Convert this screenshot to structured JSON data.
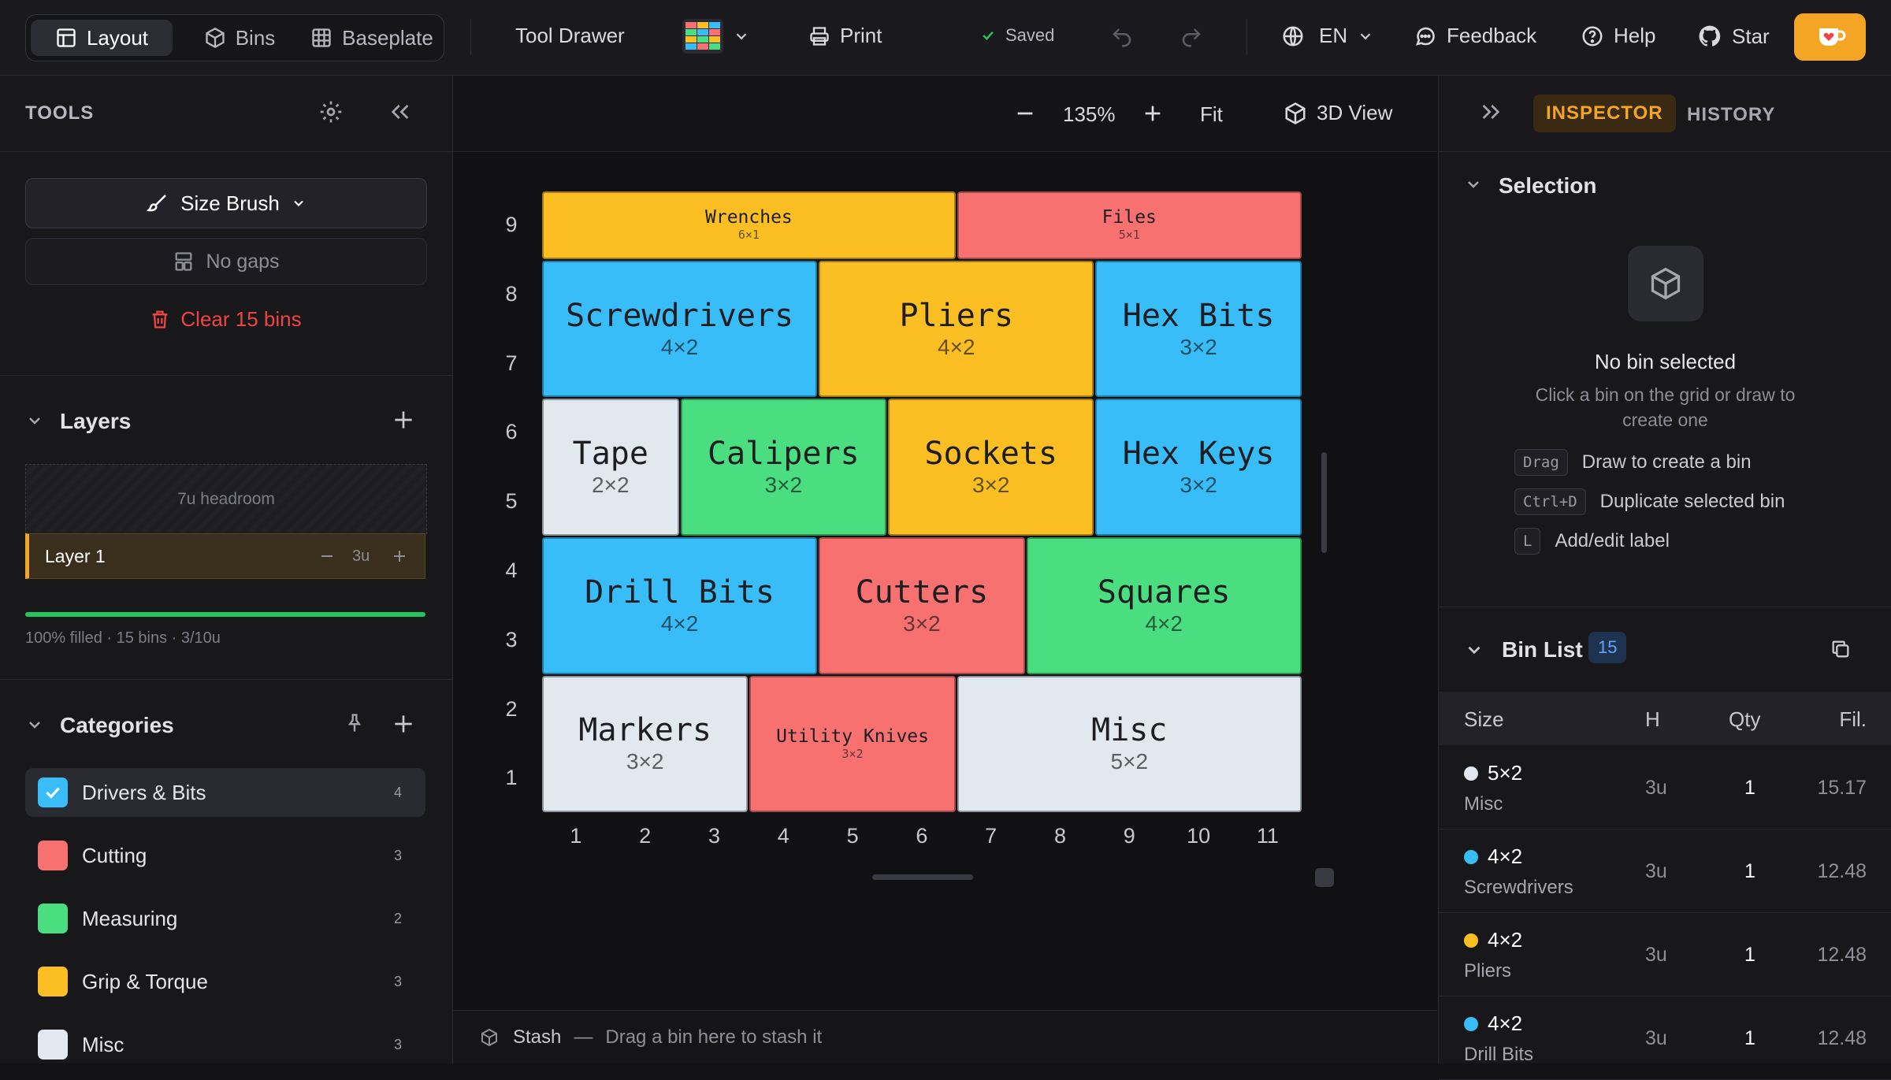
{
  "topbar": {
    "tabs": [
      {
        "label": "Layout",
        "icon": "layout-icon",
        "active": true
      },
      {
        "label": "Bins",
        "icon": "cube-icon",
        "active": false
      },
      {
        "label": "Baseplate",
        "icon": "grid-icon",
        "active": false
      }
    ],
    "project_name": "Tool Drawer",
    "print_label": "Print",
    "saved_label": "Saved",
    "language": "EN",
    "feedback_label": "Feedback",
    "help_label": "Help",
    "star_label": "Star"
  },
  "left": {
    "tools_title": "TOOLS",
    "brush_label": "Size Brush",
    "gaps_label": "No gaps",
    "clear_label": "Clear 15 bins",
    "layers_title": "Layers",
    "headroom_label": "7u headroom",
    "layer": {
      "name": "Layer 1",
      "height": "3u"
    },
    "fill": {
      "fraction": 1.0,
      "summary": "100% filled · 15 bins · 3/10u"
    },
    "categories_title": "Categories",
    "categories": [
      {
        "name": "Drivers & Bits",
        "count": "4",
        "color": "#38bdf8",
        "selected": true
      },
      {
        "name": "Cutting",
        "count": "3",
        "color": "#f87171",
        "selected": false
      },
      {
        "name": "Measuring",
        "count": "2",
        "color": "#4ade80",
        "selected": false
      },
      {
        "name": "Grip & Torque",
        "count": "3",
        "color": "#fbbf24",
        "selected": false
      },
      {
        "name": "Misc",
        "count": "3",
        "color": "#e2e8f0",
        "selected": false
      }
    ]
  },
  "canvas": {
    "zoom": "135%",
    "fit_label": "Fit",
    "view3d_label": "3D View",
    "stash_label": "Stash",
    "stash_hint": "Drag a bin here to stash it",
    "grid_cols": 11,
    "grid_rows": 9,
    "x_labels": [
      "1",
      "2",
      "3",
      "4",
      "5",
      "6",
      "7",
      "8",
      "9",
      "10",
      "11"
    ],
    "y_labels": [
      "9",
      "8",
      "7",
      "6",
      "5",
      "4",
      "3",
      "2",
      "1"
    ],
    "bins": [
      {
        "name": "Wrenches",
        "size": "6×1",
        "col": 1,
        "row": 9,
        "w": 6,
        "h": 1,
        "color": "#fbbf24",
        "small": true
      },
      {
        "name": "Files",
        "size": "5×1",
        "col": 7,
        "row": 9,
        "w": 5,
        "h": 1,
        "color": "#f87171",
        "small": true
      },
      {
        "name": "Screwdrivers",
        "size": "4×2",
        "col": 1,
        "row": 7,
        "w": 4,
        "h": 2,
        "color": "#38bdf8"
      },
      {
        "name": "Pliers",
        "size": "4×2",
        "col": 5,
        "row": 7,
        "w": 4,
        "h": 2,
        "color": "#fbbf24"
      },
      {
        "name": "Hex Bits",
        "size": "3×2",
        "col": 9,
        "row": 7,
        "w": 3,
        "h": 2,
        "color": "#38bdf8"
      },
      {
        "name": "Tape",
        "size": "2×2",
        "col": 1,
        "row": 5,
        "w": 2,
        "h": 2,
        "color": "#e2e8f0"
      },
      {
        "name": "Calipers",
        "size": "3×2",
        "col": 3,
        "row": 5,
        "w": 3,
        "h": 2,
        "color": "#4ade80"
      },
      {
        "name": "Sockets",
        "size": "3×2",
        "col": 6,
        "row": 5,
        "w": 3,
        "h": 2,
        "color": "#fbbf24"
      },
      {
        "name": "Hex Keys",
        "size": "3×2",
        "col": 9,
        "row": 5,
        "w": 3,
        "h": 2,
        "color": "#38bdf8"
      },
      {
        "name": "Drill Bits",
        "size": "4×2",
        "col": 1,
        "row": 3,
        "w": 4,
        "h": 2,
        "color": "#38bdf8"
      },
      {
        "name": "Cutters",
        "size": "3×2",
        "col": 5,
        "row": 3,
        "w": 3,
        "h": 2,
        "color": "#f87171"
      },
      {
        "name": "Squares",
        "size": "4×2",
        "col": 8,
        "row": 3,
        "w": 4,
        "h": 2,
        "color": "#4ade80"
      },
      {
        "name": "Markers",
        "size": "3×2",
        "col": 1,
        "row": 1,
        "w": 3,
        "h": 2,
        "color": "#e2e8f0"
      },
      {
        "name": "Utility Knives",
        "size": "3×2",
        "col": 4,
        "row": 1,
        "w": 3,
        "h": 2,
        "color": "#f87171",
        "small": true
      },
      {
        "name": "Misc",
        "size": "5×2",
        "col": 7,
        "row": 1,
        "w": 5,
        "h": 2,
        "color": "#e2e8f0"
      }
    ]
  },
  "inspector": {
    "tab_inspector": "INSPECTOR",
    "tab_history": "HISTORY",
    "selection_title": "Selection",
    "empty_title": "No bin selected",
    "empty_hint": "Click a bin on the grid or draw to create one",
    "shortcuts": [
      {
        "key": "Drag",
        "desc": "Draw to create a bin"
      },
      {
        "key": "Ctrl+D",
        "desc": "Duplicate selected bin"
      },
      {
        "key": "L",
        "desc": "Add/edit label"
      }
    ],
    "binlist_title": "Bin List",
    "binlist_count": "15",
    "columns": [
      "Size",
      "H",
      "Qty",
      "Fil."
    ],
    "rows": [
      {
        "size": "5×2",
        "label": "Misc",
        "h": "3u",
        "qty": "1",
        "fil": "15.17",
        "color": "#e2e8f0"
      },
      {
        "size": "4×2",
        "label": "Screwdrivers",
        "h": "3u",
        "qty": "1",
        "fil": "12.48",
        "color": "#38bdf8"
      },
      {
        "size": "4×2",
        "label": "Pliers",
        "h": "3u",
        "qty": "1",
        "fil": "12.48",
        "color": "#fbbf24"
      },
      {
        "size": "4×2",
        "label": "Drill Bits",
        "h": "3u",
        "qty": "1",
        "fil": "12.48",
        "color": "#38bdf8"
      }
    ]
  }
}
